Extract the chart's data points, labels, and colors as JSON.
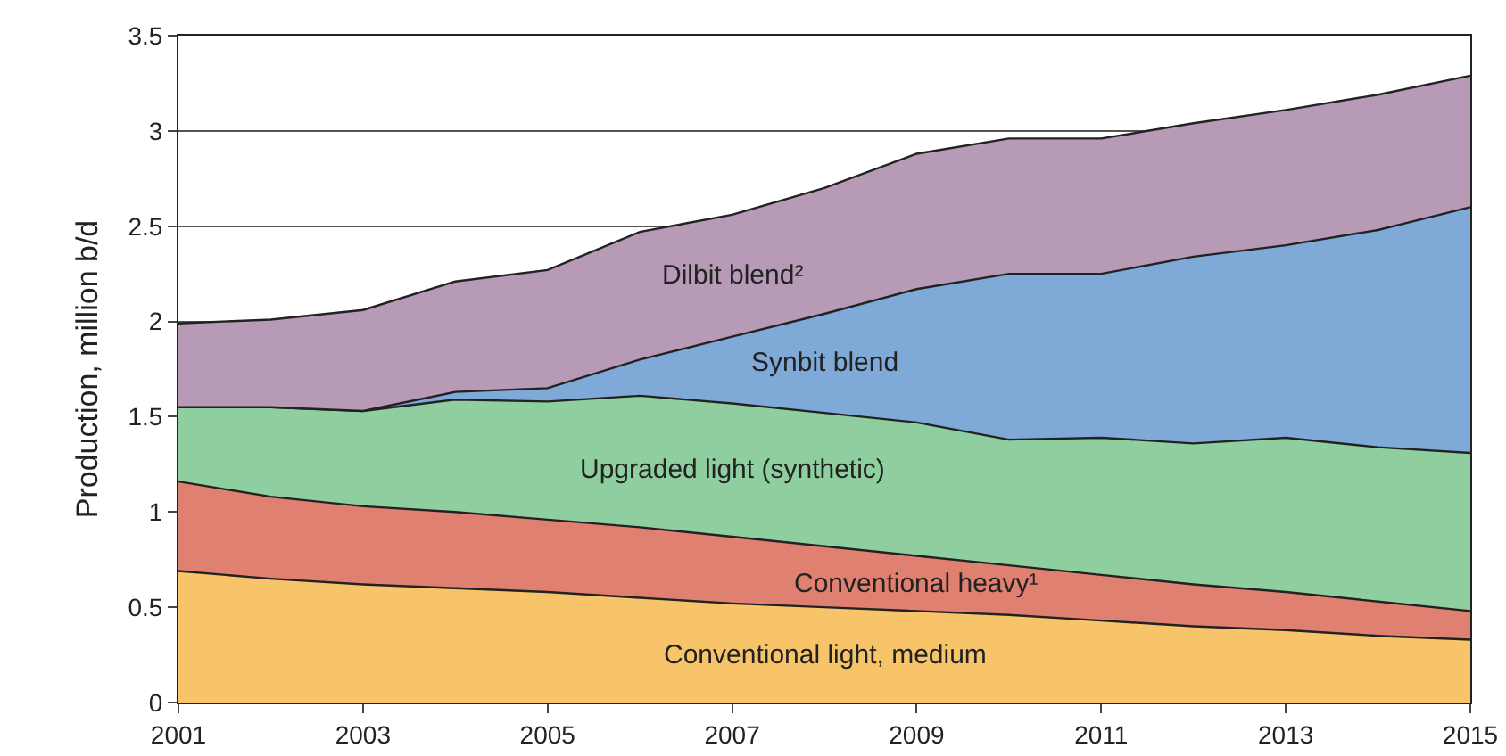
{
  "chart_data": {
    "type": "area",
    "stacked": true,
    "ylabel": "Production, million b/d",
    "x": [
      2001,
      2002,
      2003,
      2004,
      2005,
      2006,
      2007,
      2008,
      2009,
      2010,
      2011,
      2012,
      2013,
      2014,
      2015
    ],
    "series": [
      {
        "name": "Conventional light, medium",
        "color": "#f7c46a",
        "values": [
          0.69,
          0.65,
          0.62,
          0.6,
          0.58,
          0.55,
          0.52,
          0.5,
          0.48,
          0.46,
          0.43,
          0.4,
          0.38,
          0.35,
          0.33
        ]
      },
      {
        "name": "Conventional heavy¹",
        "color": "#e08070",
        "values": [
          0.47,
          0.43,
          0.41,
          0.4,
          0.38,
          0.37,
          0.35,
          0.32,
          0.29,
          0.26,
          0.24,
          0.22,
          0.2,
          0.18,
          0.15
        ]
      },
      {
        "name": "Upgraded light (synthetic)",
        "color": "#8fcf9f",
        "values": [
          0.39,
          0.47,
          0.5,
          0.59,
          0.62,
          0.69,
          0.7,
          0.7,
          0.7,
          0.66,
          0.72,
          0.74,
          0.81,
          0.81,
          0.83
        ]
      },
      {
        "name": "Synbit blend",
        "color": "#7fa9d6",
        "values": [
          0,
          0,
          0,
          0.04,
          0.07,
          0.19,
          0.35,
          0.52,
          0.7,
          0.87,
          0.86,
          0.98,
          1.01,
          1.14,
          1.29
        ]
      },
      {
        "name": "Dilbit blend²",
        "color": "#b69ab6",
        "values": [
          0.44,
          0.46,
          0.53,
          0.58,
          0.62,
          0.67,
          0.64,
          0.66,
          0.71,
          0.71,
          0.71,
          0.7,
          0.71,
          0.71,
          0.69
        ]
      }
    ],
    "xlim": [
      2001,
      2015
    ],
    "xticks": [
      2001,
      2003,
      2005,
      2007,
      2009,
      2011,
      2013,
      2015
    ],
    "ylim": [
      0,
      3.5
    ],
    "yticks": [
      0,
      0.5,
      1.0,
      1.5,
      2.0,
      2.5,
      3.0,
      3.5
    ],
    "grid": "y",
    "legend": false
  }
}
